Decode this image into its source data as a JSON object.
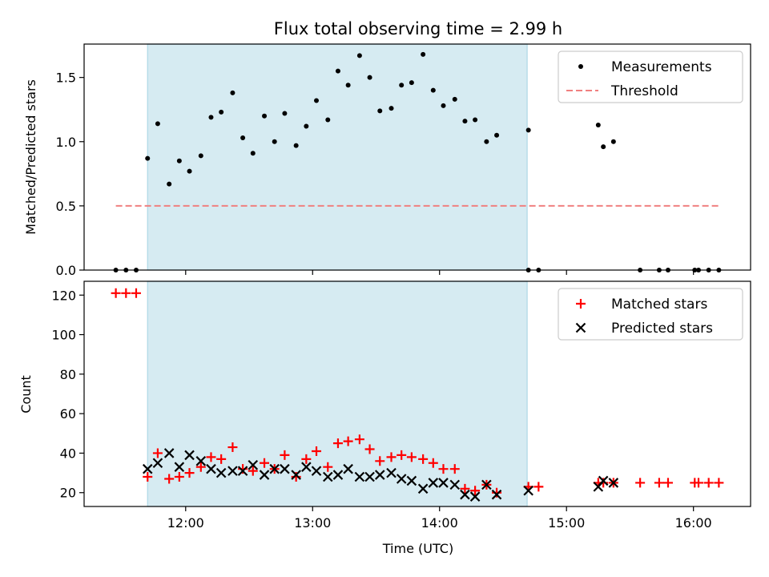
{
  "chart_data": [
    {
      "type": "scatter",
      "title": "Flux total observing time = 2.99 h",
      "ylabel": "Matched/Predicted stars",
      "xlabel": "",
      "xlim": [
        11.2,
        16.45
      ],
      "ylim": [
        0,
        1.76
      ],
      "yticks": [
        0,
        0.5,
        1.0,
        1.5
      ],
      "ytick_labels": [
        "0.0",
        "0.5",
        "1.0",
        "1.5"
      ],
      "xticks": [
        12,
        13,
        14,
        15,
        16
      ],
      "shaded_interval": [
        11.7,
        14.69
      ],
      "threshold": {
        "name": "Threshold",
        "y": 0.5,
        "x_range": [
          11.45,
          16.2
        ],
        "color": "#f08080"
      },
      "legend": {
        "position": "top-right",
        "entries": [
          "Measurements",
          "Threshold"
        ]
      },
      "series": [
        {
          "name": "Measurements",
          "color": "#000000",
          "marker": "dot",
          "points": [
            [
              11.45,
              0
            ],
            [
              11.53,
              0
            ],
            [
              11.61,
              0
            ],
            [
              11.7,
              0.87
            ],
            [
              11.78,
              1.14
            ],
            [
              11.87,
              0.67
            ],
            [
              11.95,
              0.85
            ],
            [
              12.03,
              0.77
            ],
            [
              12.12,
              0.89
            ],
            [
              12.2,
              1.19
            ],
            [
              12.28,
              1.23
            ],
            [
              12.37,
              1.38
            ],
            [
              12.45,
              1.03
            ],
            [
              12.53,
              0.91
            ],
            [
              12.62,
              1.2
            ],
            [
              12.7,
              1.0
            ],
            [
              12.78,
              1.22
            ],
            [
              12.87,
              0.97
            ],
            [
              12.95,
              1.12
            ],
            [
              13.03,
              1.32
            ],
            [
              13.12,
              1.17
            ],
            [
              13.2,
              1.55
            ],
            [
              13.28,
              1.44
            ],
            [
              13.37,
              1.67
            ],
            [
              13.45,
              1.5
            ],
            [
              13.53,
              1.24
            ],
            [
              13.62,
              1.26
            ],
            [
              13.7,
              1.44
            ],
            [
              13.78,
              1.46
            ],
            [
              13.87,
              1.68
            ],
            [
              13.95,
              1.4
            ],
            [
              14.03,
              1.28
            ],
            [
              14.12,
              1.33
            ],
            [
              14.2,
              1.16
            ],
            [
              14.28,
              1.17
            ],
            [
              14.37,
              1.0
            ],
            [
              14.45,
              1.05
            ],
            [
              14.7,
              1.09
            ],
            [
              14.7,
              0
            ],
            [
              14.78,
              0
            ],
            [
              15.25,
              1.13
            ],
            [
              15.29,
              0.96
            ],
            [
              15.37,
              1.0
            ],
            [
              15.58,
              0
            ],
            [
              15.73,
              0
            ],
            [
              15.8,
              0
            ],
            [
              16.01,
              0
            ],
            [
              16.04,
              0
            ],
            [
              16.12,
              0
            ],
            [
              16.2,
              0
            ]
          ]
        }
      ]
    },
    {
      "type": "scatter",
      "title": "",
      "ylabel": "Count",
      "xlabel": "Time (UTC)",
      "xlim": [
        11.2,
        16.45
      ],
      "ylim": [
        13,
        127
      ],
      "yticks": [
        20,
        40,
        60,
        80,
        100,
        120
      ],
      "xticks": [
        12,
        13,
        14,
        15,
        16
      ],
      "xtick_labels": [
        "12:00",
        "13:00",
        "14:00",
        "15:00",
        "16:00"
      ],
      "shaded_interval": [
        11.7,
        14.69
      ],
      "legend": {
        "position": "top-right",
        "entries": [
          "Matched stars",
          "Predicted stars"
        ]
      },
      "series": [
        {
          "name": "Matched stars",
          "color": "#ff0000",
          "marker": "plus",
          "points": [
            [
              11.45,
              121
            ],
            [
              11.53,
              121
            ],
            [
              11.61,
              121
            ],
            [
              11.7,
              28
            ],
            [
              11.78,
              40
            ],
            [
              11.87,
              27
            ],
            [
              11.95,
              28
            ],
            [
              12.03,
              30
            ],
            [
              12.12,
              33
            ],
            [
              12.2,
              38
            ],
            [
              12.28,
              37
            ],
            [
              12.37,
              43
            ],
            [
              12.45,
              32
            ],
            [
              12.53,
              31
            ],
            [
              12.62,
              35
            ],
            [
              12.7,
              32
            ],
            [
              12.78,
              39
            ],
            [
              12.87,
              28
            ],
            [
              12.95,
              37
            ],
            [
              13.03,
              41
            ],
            [
              13.12,
              33
            ],
            [
              13.2,
              45
            ],
            [
              13.28,
              46
            ],
            [
              13.37,
              47
            ],
            [
              13.45,
              42
            ],
            [
              13.53,
              36
            ],
            [
              13.62,
              38
            ],
            [
              13.7,
              39
            ],
            [
              13.78,
              38
            ],
            [
              13.87,
              37
            ],
            [
              13.95,
              35
            ],
            [
              14.03,
              32
            ],
            [
              14.12,
              32
            ],
            [
              14.2,
              22
            ],
            [
              14.28,
              21
            ],
            [
              14.37,
              24
            ],
            [
              14.45,
              20
            ],
            [
              14.7,
              23
            ],
            [
              14.78,
              23
            ],
            [
              15.25,
              25
            ],
            [
              15.29,
              25
            ],
            [
              15.37,
              25
            ],
            [
              15.58,
              25
            ],
            [
              15.73,
              25
            ],
            [
              15.8,
              25
            ],
            [
              16.01,
              25
            ],
            [
              16.04,
              25
            ],
            [
              16.12,
              25
            ],
            [
              16.2,
              25
            ]
          ]
        },
        {
          "name": "Predicted stars",
          "color": "#000000",
          "marker": "x",
          "points": [
            [
              11.7,
              32
            ],
            [
              11.78,
              35
            ],
            [
              11.87,
              40
            ],
            [
              11.95,
              33
            ],
            [
              12.03,
              39
            ],
            [
              12.12,
              36
            ],
            [
              12.2,
              32
            ],
            [
              12.28,
              30
            ],
            [
              12.37,
              31
            ],
            [
              12.45,
              31
            ],
            [
              12.53,
              34
            ],
            [
              12.62,
              29
            ],
            [
              12.7,
              32
            ],
            [
              12.78,
              32
            ],
            [
              12.87,
              29
            ],
            [
              12.95,
              33
            ],
            [
              13.03,
              31
            ],
            [
              13.12,
              28
            ],
            [
              13.2,
              29
            ],
            [
              13.28,
              32
            ],
            [
              13.37,
              28
            ],
            [
              13.45,
              28
            ],
            [
              13.53,
              29
            ],
            [
              13.62,
              30
            ],
            [
              13.7,
              27
            ],
            [
              13.78,
              26
            ],
            [
              13.87,
              22
            ],
            [
              13.95,
              25
            ],
            [
              14.03,
              25
            ],
            [
              14.12,
              24
            ],
            [
              14.2,
              19
            ],
            [
              14.28,
              18
            ],
            [
              14.37,
              24
            ],
            [
              14.45,
              19
            ],
            [
              14.7,
              21
            ],
            [
              15.25,
              23
            ],
            [
              15.29,
              26
            ],
            [
              15.37,
              25
            ]
          ]
        }
      ]
    }
  ]
}
